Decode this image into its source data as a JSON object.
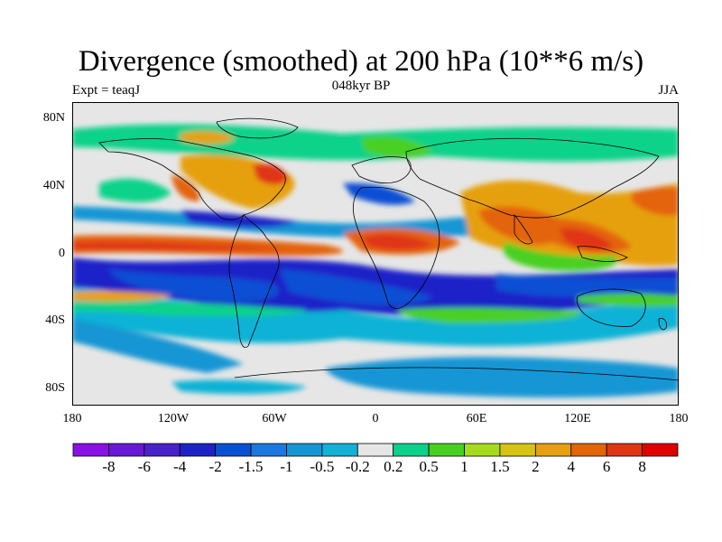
{
  "title": "Divergence (smoothed) at 200 hPa (10**6 m/s)",
  "experiment": "Expt = teaqJ",
  "period": "048kyr BP",
  "season": "JJA",
  "y_ticks": [
    "80N",
    "40N",
    "0",
    "40S",
    "80S"
  ],
  "x_ticks": [
    "180",
    "120W",
    "60W",
    "0",
    "60E",
    "120E",
    "180"
  ],
  "colorbar": {
    "colors": [
      "#8a10e8",
      "#6a18d8",
      "#4a22cc",
      "#1c22c8",
      "#0a50d4",
      "#1c78e0",
      "#1496d4",
      "#10b2d6",
      "#e6e6e6",
      "#0ad28a",
      "#48d020",
      "#a6dc1a",
      "#d6c410",
      "#e6a010",
      "#e46408",
      "#e03414",
      "#e00000"
    ],
    "labels": [
      "-8",
      "-6",
      "-4",
      "-2",
      "-1.5",
      "-1",
      "-0.5",
      "-0.2",
      "0.2",
      "0.5",
      "1",
      "1.5",
      "2",
      "4",
      "6",
      "8"
    ]
  }
}
